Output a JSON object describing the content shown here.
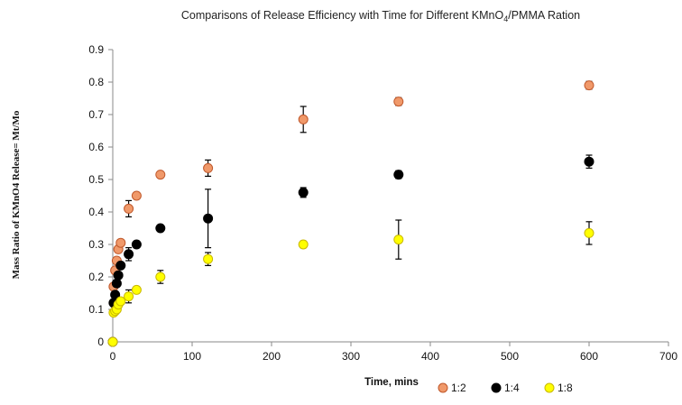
{
  "chart_data": {
    "type": "scatter",
    "title": "Comparisons of Release Efficiency with Time for Different KMnO",
    "title_sub": "4",
    "title_suffix": "/PMMA Ration",
    "xlabel": "Time, mins",
    "ylabel": "Mass Ratio of KMnO4 Release= Mt/Mo",
    "xlim": [
      0,
      700
    ],
    "ylim": [
      0,
      0.9
    ],
    "xticks": [
      0,
      100,
      200,
      300,
      400,
      500,
      600,
      700
    ],
    "yticks": [
      0,
      0.1,
      0.2,
      0.3,
      0.4,
      0.5,
      0.6,
      0.7,
      0.8,
      0.9
    ],
    "ytick_labels": [
      "0",
      "0.1",
      "0.2",
      "0.3",
      "0.4",
      "0.5",
      "0.6",
      "0.7",
      "0.8",
      "0.9"
    ],
    "grid": false,
    "legend_position": "bottom-right",
    "series": [
      {
        "name": "1:2",
        "color": "#f0996a",
        "stroke": "#c0582b",
        "x": [
          0,
          1,
          3,
          5,
          7,
          10,
          20,
          30,
          60,
          120,
          240,
          360,
          600
        ],
        "y": [
          0,
          0.17,
          0.22,
          0.25,
          0.285,
          0.305,
          0.41,
          0.45,
          0.515,
          0.535,
          0.685,
          0.74,
          0.79
        ],
        "err": [
          0,
          0,
          0,
          0,
          0,
          0,
          0.025,
          0,
          0,
          0.025,
          0.04,
          0.012,
          0.012
        ]
      },
      {
        "name": "1:4",
        "color": "#000000",
        "stroke": "#000000",
        "x": [
          0,
          1,
          3,
          5,
          7,
          10,
          20,
          30,
          60,
          120,
          240,
          360,
          600
        ],
        "y": [
          0,
          0.12,
          0.145,
          0.18,
          0.205,
          0.235,
          0.27,
          0.3,
          0.35,
          0.38,
          0.46,
          0.515,
          0.555
        ],
        "err": [
          0,
          0,
          0,
          0,
          0,
          0,
          0.02,
          0.01,
          0,
          0.09,
          0.015,
          0.012,
          0.02
        ]
      },
      {
        "name": "1:8",
        "color": "#ffff00",
        "stroke": "#c9b800",
        "x": [
          0,
          1,
          3,
          5,
          7,
          10,
          20,
          30,
          60,
          120,
          240,
          360,
          600
        ],
        "y": [
          0,
          0.09,
          0.095,
          0.1,
          0.115,
          0.125,
          0.14,
          0.16,
          0.2,
          0.255,
          0.3,
          0.315,
          0.335
        ],
        "err": [
          0,
          0,
          0,
          0,
          0,
          0,
          0.02,
          0.01,
          0.02,
          0.02,
          0.01,
          0.06,
          0.035
        ]
      }
    ]
  }
}
